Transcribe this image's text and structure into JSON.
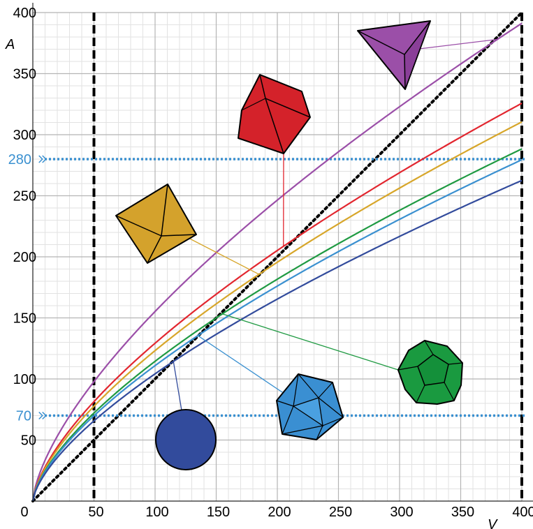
{
  "chart_data": {
    "type": "line",
    "title": "",
    "xlabel": "V",
    "ylabel": "A",
    "xlim": [
      0,
      400
    ],
    "ylim": [
      0,
      400
    ],
    "x_ticks": [
      "0",
      "50",
      "100",
      "150",
      "200",
      "250",
      "300",
      "350",
      "400"
    ],
    "y_ticks": [
      "50",
      "100",
      "150",
      "200",
      "250",
      "300",
      "350",
      "400"
    ],
    "grid": true,
    "minor_grid": true,
    "series": [
      {
        "shape": "tetrahedron",
        "color": "#9b4fa8",
        "k": 7.206
      },
      {
        "shape": "cube",
        "color": "#e2262f",
        "k": 6.0
      },
      {
        "shape": "octahedron",
        "color": "#d7a62a",
        "k": 5.719
      },
      {
        "shape": "dodecahedron",
        "color": "#1f9a42",
        "k": 5.312
      },
      {
        "shape": "icosahedron",
        "color": "#3a90d0",
        "k": 5.148
      },
      {
        "shape": "sphere",
        "color": "#324b9c",
        "k": 4.836
      }
    ],
    "curve_formula": "A = k * V^(2/3)",
    "reference_line": {
      "label": "A = V",
      "style": "dotted",
      "color": "#000000"
    },
    "vertical_lines": [
      {
        "x": 50,
        "style": "dashed",
        "color": "#000000"
      },
      {
        "x": 400,
        "style": "dashed",
        "color": "#000000"
      }
    ],
    "horizontal_markers": [
      {
        "y": 280,
        "label": "280",
        "color": "#3a90d0"
      },
      {
        "y": 70,
        "label": "70",
        "color": "#3a90d0"
      }
    ]
  }
}
